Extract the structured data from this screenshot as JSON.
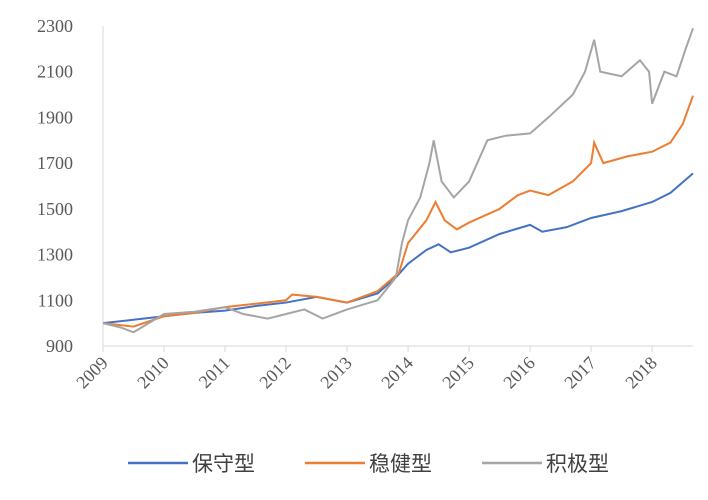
{
  "chart_data": {
    "type": "line",
    "xlim": [
      2009,
      2018.67
    ],
    "xticks": [
      2009,
      2010,
      2011,
      2012,
      2013,
      2014,
      2015,
      2016,
      2017,
      2018
    ],
    "ylim": [
      900,
      2300
    ],
    "yticks": [
      900,
      1100,
      1300,
      1500,
      1700,
      1900,
      2100,
      2300
    ],
    "grid": false,
    "legend": "bottom",
    "series": [
      {
        "name": "保守型",
        "color": "#4472c4",
        "x": [
          2009,
          2009.5,
          2010,
          2010.5,
          2011,
          2011.5,
          2012,
          2012.5,
          2013,
          2013.5,
          2013.8,
          2014,
          2014.3,
          2014.5,
          2014.7,
          2015,
          2015.5,
          2016,
          2016.2,
          2016.6,
          2017,
          2017.5,
          2018,
          2018.3,
          2018.67
        ],
        "values": [
          1000,
          1015,
          1030,
          1045,
          1055,
          1075,
          1090,
          1115,
          1090,
          1130,
          1200,
          1260,
          1320,
          1345,
          1310,
          1330,
          1390,
          1430,
          1400,
          1420,
          1460,
          1490,
          1530,
          1570,
          1655
        ]
      },
      {
        "name": "稳健型",
        "color": "#ed7d31",
        "x": [
          2009,
          2009.5,
          2010,
          2010.5,
          2011,
          2011.5,
          2012,
          2012.1,
          2012.5,
          2013,
          2013.5,
          2013.85,
          2014,
          2014.3,
          2014.45,
          2014.6,
          2014.8,
          2015,
          2015.5,
          2015.8,
          2016,
          2016.3,
          2016.7,
          2017,
          2017.05,
          2017.2,
          2017.6,
          2018,
          2018.3,
          2018.5,
          2018.67
        ],
        "values": [
          1000,
          985,
          1030,
          1045,
          1070,
          1085,
          1100,
          1125,
          1115,
          1090,
          1140,
          1220,
          1350,
          1450,
          1530,
          1450,
          1410,
          1440,
          1500,
          1560,
          1580,
          1560,
          1620,
          1700,
          1790,
          1700,
          1730,
          1750,
          1790,
          1870,
          1995
        ]
      },
      {
        "name": "积极型",
        "color": "#a5a5a5",
        "x": [
          2009,
          2009.3,
          2009.5,
          2010,
          2010.5,
          2011,
          2011.3,
          2011.7,
          2012,
          2012.3,
          2012.6,
          2013,
          2013.5,
          2013.8,
          2013.9,
          2014,
          2014.2,
          2014.35,
          2014.42,
          2014.55,
          2014.75,
          2015,
          2015.3,
          2015.6,
          2016,
          2016.3,
          2016.7,
          2016.9,
          2017.05,
          2017.15,
          2017.5,
          2017.8,
          2017.95,
          2018,
          2018.2,
          2018.4,
          2018.55,
          2018.67
        ],
        "values": [
          1000,
          980,
          960,
          1040,
          1050,
          1070,
          1040,
          1020,
          1040,
          1060,
          1020,
          1060,
          1100,
          1200,
          1350,
          1450,
          1550,
          1700,
          1800,
          1620,
          1550,
          1620,
          1800,
          1820,
          1830,
          1900,
          2000,
          2100,
          2240,
          2100,
          2080,
          2150,
          2100,
          1960,
          2100,
          2080,
          2200,
          2290
        ]
      }
    ]
  }
}
